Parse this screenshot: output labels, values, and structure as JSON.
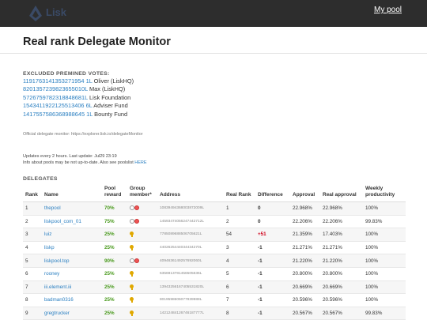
{
  "header": {
    "logo_text": "Lisk",
    "nav_link": "My pool"
  },
  "page": {
    "title": "Real rank Delegate Monitor"
  },
  "excluded": {
    "heading": "EXCLUDED PREMINED VOTES:",
    "items": [
      {
        "address": "1191763141353271954 1L",
        "name": "Oliver (LiskHQ)"
      },
      {
        "address": "8201357239823655010L",
        "name": "Max (LiskHQ)"
      },
      {
        "address": "5726759782318848681L",
        "name": "Lisk Foundation"
      },
      {
        "address": "1543411922125513406 6L",
        "name": "Adviser Fund"
      },
      {
        "address": "1417557586368988645 1L",
        "name": "Bounty Fund"
      }
    ],
    "official_note": "Official delegate monitor: https://explorer.lisk.io/delegateMonitor"
  },
  "updates": {
    "line1": "Updates every 2 hours. Last update: Jul29 23:19",
    "line2_prefix": "Info about pools may be not up-to-date. Also see poolslist ",
    "line2_link": "HERE"
  },
  "delegates": {
    "heading": "DELEGATES",
    "columns": {
      "rank": "Rank",
      "name": "Name",
      "pool_reward": "Pool reward",
      "group_member": "Group member*",
      "address": "Address",
      "real_rank": "Real Rank",
      "difference": "Difference",
      "approval": "Approval",
      "real_approval": "Real approval",
      "weekly_productivity": "Weekly productivity"
    },
    "rows": [
      {
        "rank": "1",
        "name": "thepool",
        "reward": "70%",
        "member": "dots",
        "address": "10839494368003872009L",
        "real_rank": "1",
        "diff": "0",
        "approval": "22.968%",
        "real_approval": "22.968%",
        "productivity": "100%"
      },
      {
        "rank": "2",
        "name": "liskpool_com_01",
        "reward": "75%",
        "member": "dots",
        "address": "14593474056247442712L",
        "real_rank": "2",
        "diff": "0",
        "approval": "22.206%",
        "real_approval": "22.206%",
        "productivity": "99.83%"
      },
      {
        "rank": "3",
        "name": "luiz",
        "reward": "25%",
        "member": "pin",
        "address": "7785089688506705621L",
        "real_rank": "54",
        "diff": "+51",
        "approval": "21.359%",
        "real_approval": "17.403%",
        "productivity": "100%"
      },
      {
        "rank": "4",
        "name": "liskp",
        "reward": "25%",
        "member": "pin",
        "address": "4402625444034434270L",
        "real_rank": "3",
        "diff": "-1",
        "approval": "21.271%",
        "real_approval": "21.271%",
        "productivity": "100%"
      },
      {
        "rank": "5",
        "name": "liskpool.top",
        "reward": "90%",
        "member": "dots",
        "address": "4094636149257692060L",
        "real_rank": "4",
        "diff": "-1",
        "approval": "21.220%",
        "real_approval": "21.220%",
        "productivity": "100%"
      },
      {
        "rank": "6",
        "name": "rooney",
        "reward": "25%",
        "member": "pin",
        "address": "6356913781456505636L",
        "real_rank": "5",
        "diff": "-1",
        "approval": "20.800%",
        "real_approval": "20.800%",
        "productivity": "100%"
      },
      {
        "rank": "7",
        "name": "iii.element.iii",
        "reward": "25%",
        "member": "pin",
        "address": "13943256167405531820L",
        "real_rank": "6",
        "diff": "-1",
        "approval": "20.669%",
        "real_approval": "20.669%",
        "productivity": "100%"
      },
      {
        "rank": "8",
        "name": "badman0316",
        "reward": "25%",
        "member": "pin",
        "address": "8019598606077939988L",
        "real_rank": "7",
        "diff": "-1",
        "approval": "20.596%",
        "real_approval": "20.596%",
        "productivity": "100%"
      },
      {
        "rank": "9",
        "name": "gregtrucker",
        "reward": "25%",
        "member": "pin",
        "address": "14212484126746187777L",
        "real_rank": "8",
        "diff": "-1",
        "approval": "20.567%",
        "real_approval": "20.567%",
        "productivity": "99.83%"
      }
    ]
  },
  "colors": {
    "topbar": "#2d2d2d",
    "link": "#2a7fc1",
    "reward": "#4a9a1e",
    "diff_positive": "#d0021b"
  }
}
